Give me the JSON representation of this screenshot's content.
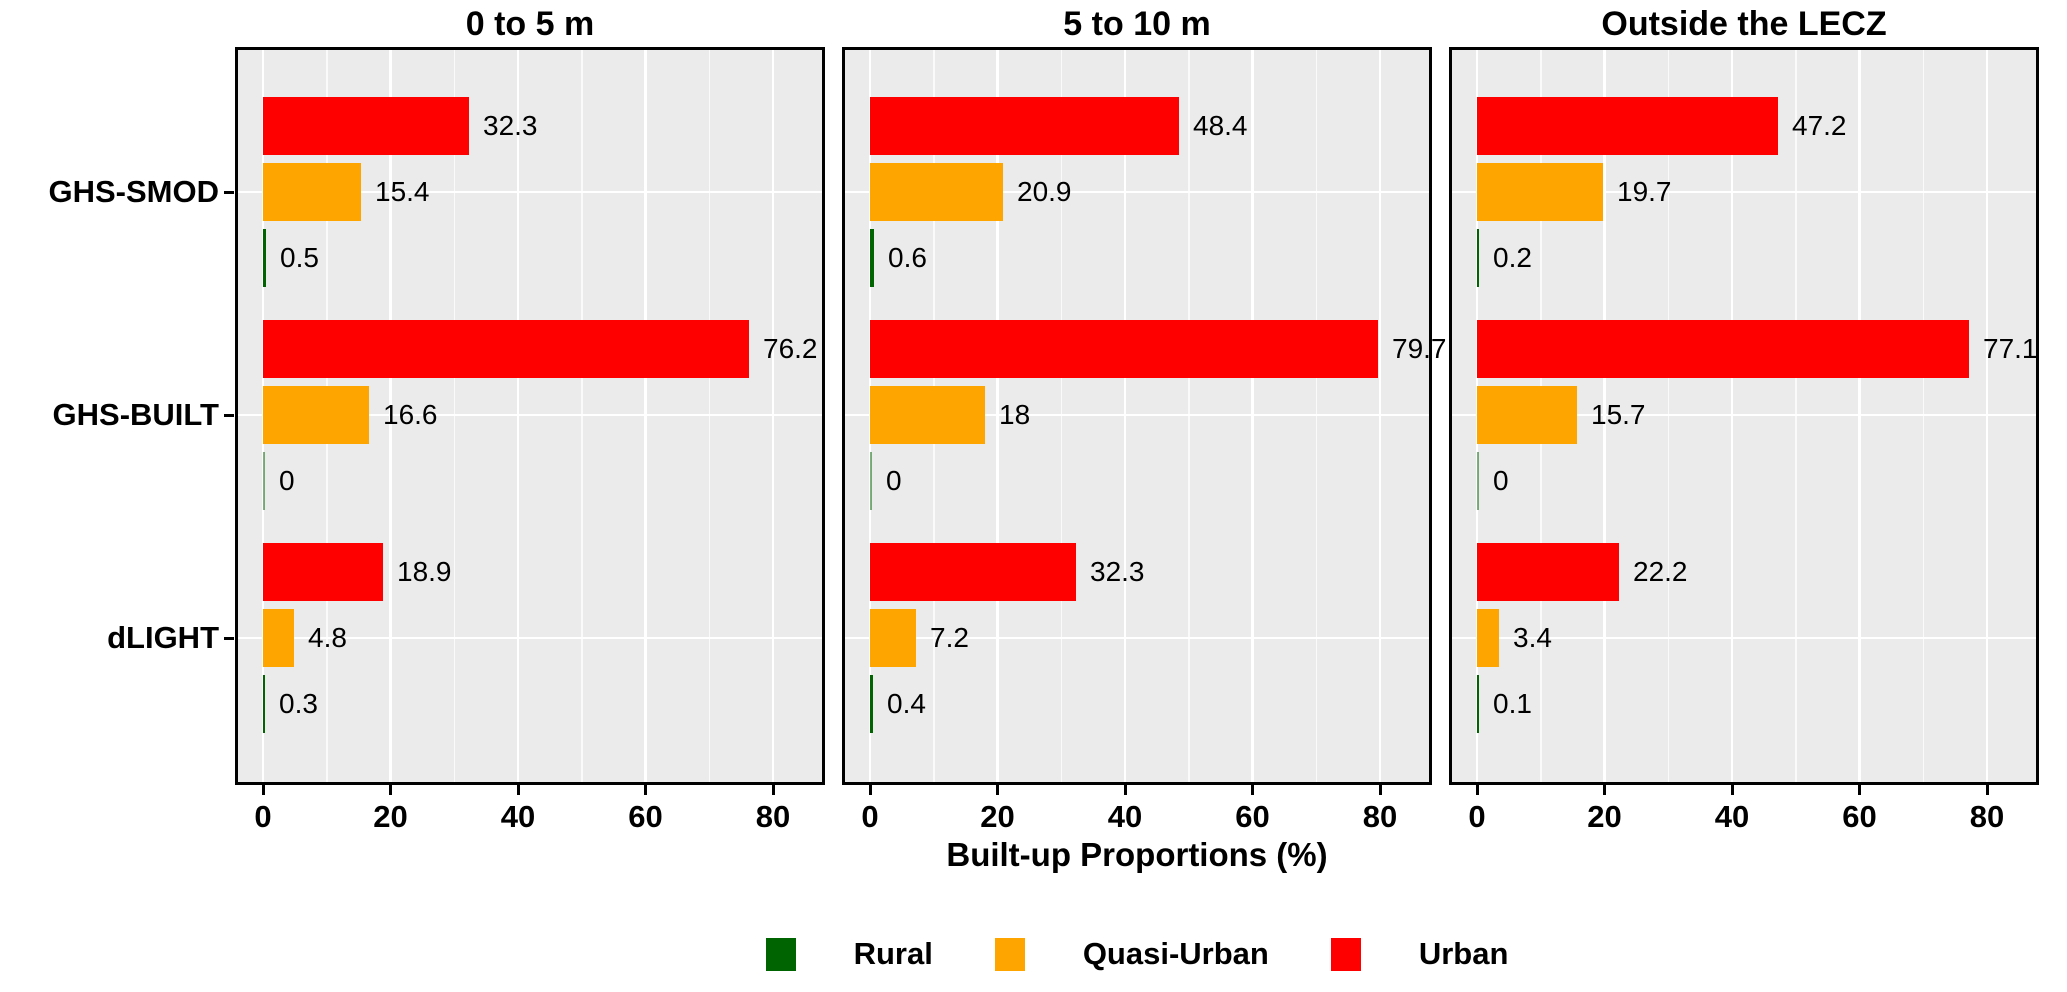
{
  "chart_data": {
    "type": "bar",
    "orientation": "horizontal",
    "xlabel": "Built-up Proportions (%)",
    "x_ticks": [
      0,
      20,
      40,
      60,
      80
    ],
    "xlim": [
      0,
      88
    ],
    "grid": true,
    "legend_position": "bottom",
    "categories": [
      "GHS-SMOD",
      "GHS-BUILT",
      "dLIGHT"
    ],
    "series_order_top_to_bottom": [
      "Urban",
      "Quasi-Urban",
      "Rural"
    ],
    "legend": [
      {
        "name": "Rural",
        "color": "#006400"
      },
      {
        "name": "Quasi-Urban",
        "color": "#FFA500"
      },
      {
        "name": "Urban",
        "color": "#FF0000"
      }
    ],
    "colors": {
      "panel_background": "#EBEBEB",
      "gridline": "#FFFFFF",
      "panel_border": "#000000",
      "text": "#000000"
    },
    "facets": [
      {
        "title": "0 to 5 m",
        "groups": [
          {
            "category": "GHS-SMOD",
            "bars": [
              {
                "series": "Urban",
                "value": 32.3,
                "label": "32.3"
              },
              {
                "series": "Quasi-Urban",
                "value": 15.4,
                "label": "15.4"
              },
              {
                "series": "Rural",
                "value": 0.5,
                "label": "0.5"
              }
            ]
          },
          {
            "category": "GHS-BUILT",
            "bars": [
              {
                "series": "Urban",
                "value": 76.2,
                "label": "76.2"
              },
              {
                "series": "Quasi-Urban",
                "value": 16.6,
                "label": "16.6"
              },
              {
                "series": "Rural",
                "value": 0,
                "label": "0"
              }
            ]
          },
          {
            "category": "dLIGHT",
            "bars": [
              {
                "series": "Urban",
                "value": 18.9,
                "label": "18.9"
              },
              {
                "series": "Quasi-Urban",
                "value": 4.8,
                "label": "4.8"
              },
              {
                "series": "Rural",
                "value": 0.3,
                "label": "0.3"
              }
            ]
          }
        ]
      },
      {
        "title": "5 to 10 m",
        "groups": [
          {
            "category": "GHS-SMOD",
            "bars": [
              {
                "series": "Urban",
                "value": 48.4,
                "label": "48.4"
              },
              {
                "series": "Quasi-Urban",
                "value": 20.9,
                "label": "20.9"
              },
              {
                "series": "Rural",
                "value": 0.6,
                "label": "0.6"
              }
            ]
          },
          {
            "category": "GHS-BUILT",
            "bars": [
              {
                "series": "Urban",
                "value": 79.7,
                "label": "79.7"
              },
              {
                "series": "Quasi-Urban",
                "value": 18,
                "label": "18"
              },
              {
                "series": "Rural",
                "value": 0,
                "label": "0"
              }
            ]
          },
          {
            "category": "dLIGHT",
            "bars": [
              {
                "series": "Urban",
                "value": 32.3,
                "label": "32.3"
              },
              {
                "series": "Quasi-Urban",
                "value": 7.2,
                "label": "7.2"
              },
              {
                "series": "Rural",
                "value": 0.4,
                "label": "0.4"
              }
            ]
          }
        ]
      },
      {
        "title": "Outside the LECZ",
        "groups": [
          {
            "category": "GHS-SMOD",
            "bars": [
              {
                "series": "Urban",
                "value": 47.2,
                "label": "47.2"
              },
              {
                "series": "Quasi-Urban",
                "value": 19.7,
                "label": "19.7"
              },
              {
                "series": "Rural",
                "value": 0.2,
                "label": "0.2"
              }
            ]
          },
          {
            "category": "GHS-BUILT",
            "bars": [
              {
                "series": "Urban",
                "value": 77.1,
                "label": "77.1"
              },
              {
                "series": "Quasi-Urban",
                "value": 15.7,
                "label": "15.7"
              },
              {
                "series": "Rural",
                "value": 0,
                "label": "0"
              }
            ]
          },
          {
            "category": "dLIGHT",
            "bars": [
              {
                "series": "Urban",
                "value": 22.2,
                "label": "22.2"
              },
              {
                "series": "Quasi-Urban",
                "value": 3.4,
                "label": "3.4"
              },
              {
                "series": "Rural",
                "value": 0.1,
                "label": "0.1"
              }
            ]
          }
        ]
      }
    ]
  }
}
